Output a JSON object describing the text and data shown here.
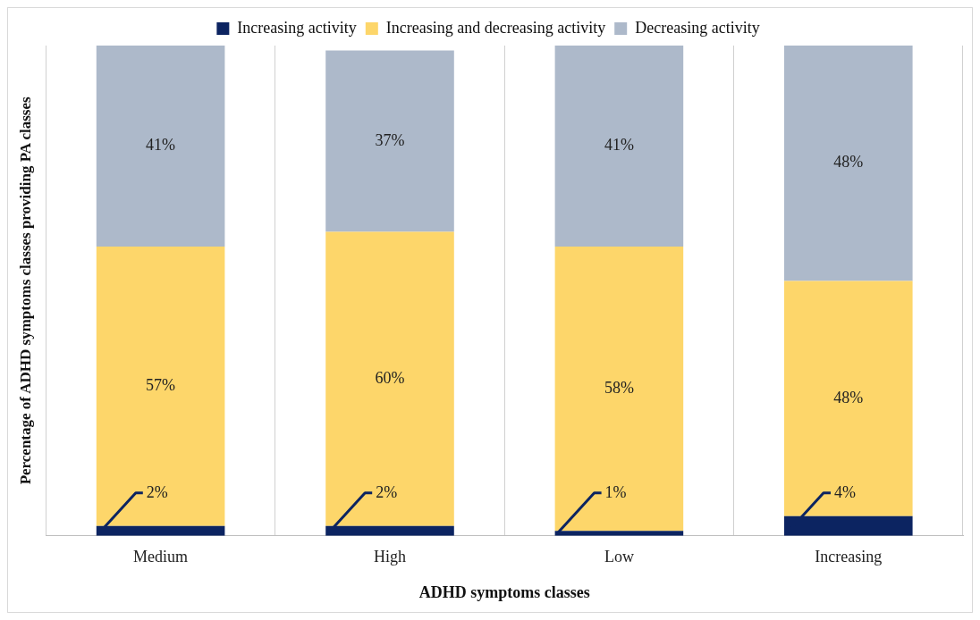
{
  "chart_data": {
    "type": "bar",
    "stacked": true,
    "xlabel": "ADHD symptoms classes",
    "ylabel": "Percentage of ADHD symptoms classes providing PA classes",
    "categories": [
      "Medium",
      "High",
      "Low",
      "Increasing"
    ],
    "series": [
      {
        "name": "Increasing activity",
        "color": "#0c2461",
        "values": [
          2,
          2,
          1,
          4
        ],
        "value_labels": [
          "2%",
          "2%",
          "1%",
          "4%"
        ]
      },
      {
        "name": "Increasing and decreasing activity",
        "color": "#fdd66a",
        "values": [
          57,
          60,
          58,
          48
        ],
        "value_labels": [
          "57%",
          "60%",
          "58%",
          "48%"
        ]
      },
      {
        "name": "Decreasing activity",
        "color": "#adb9ca",
        "values": [
          41,
          37,
          41,
          48
        ],
        "value_labels": [
          "41%",
          "37%",
          "41%",
          "48%"
        ]
      }
    ],
    "legend": "top",
    "grid": "x",
    "tick_labels": "x"
  }
}
